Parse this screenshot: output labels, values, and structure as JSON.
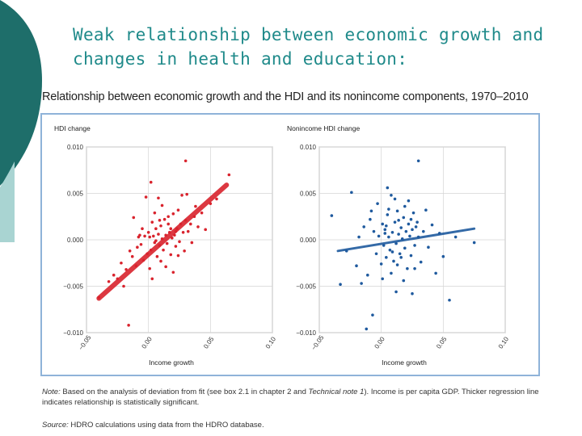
{
  "slide": {
    "title_line1": "Weak relationship between economic growth and",
    "title_line2": "changes in health and education:",
    "colors": {
      "teal": "#1e6e6a",
      "light_teal": "#a9d4d2",
      "title": "#1f8a8a"
    }
  },
  "figure": {
    "title": "Relationship between economic growth and the HDI and its nonincome components, 1970–2010",
    "note_label": "Note:",
    "note_text_1": "Based on the analysis of deviation from fit (see box 2.1 in chapter 2 and",
    "note_italic": "Technical note 1",
    "note_text_2": "). Income is per capita GDP. Thicker regression line",
    "note_text_3": "indicates relationship is statistically significant.",
    "source_label": "Source:",
    "source_text": "HDRO calculations using data from the HDRO database."
  },
  "chart_data": [
    {
      "type": "scatter",
      "title": "HDI change",
      "xlabel": "Income growth",
      "ylabel": "HDI change",
      "xlim": [
        -0.05,
        0.1
      ],
      "ylim": [
        -0.01,
        0.01
      ],
      "x_ticks": [
        "−0.05",
        "0.00",
        "0.05",
        "0.10"
      ],
      "x_tick_values": [
        -0.05,
        0.0,
        0.05,
        0.1
      ],
      "y_ticks": [
        "0.010",
        "0.005",
        "0.000",
        "−0.005",
        "−0.010"
      ],
      "y_tick_values": [
        0.01,
        0.005,
        0.0,
        -0.005,
        -0.01
      ],
      "color": "#d9232d",
      "regression": {
        "x": [
          -0.04,
          0.063
        ],
        "y": [
          -0.0063,
          0.0059
        ],
        "significant": true
      },
      "points": [
        [
          -0.04,
          -0.0062
        ],
        [
          -0.032,
          -0.0045
        ],
        [
          -0.028,
          -0.0038
        ],
        [
          -0.025,
          -0.0042
        ],
        [
          -0.022,
          -0.0025
        ],
        [
          -0.02,
          -0.005
        ],
        [
          -0.018,
          -0.0032
        ],
        [
          -0.016,
          -0.0092
        ],
        [
          -0.015,
          -0.0012
        ],
        [
          -0.013,
          -0.0018
        ],
        [
          -0.012,
          0.0024
        ],
        [
          -0.01,
          -0.0028
        ],
        [
          -0.009,
          -0.0008
        ],
        [
          -0.008,
          0.0003
        ],
        [
          -0.006,
          -0.0005
        ],
        [
          -0.005,
          0.0012
        ],
        [
          -0.004,
          -0.0022
        ],
        [
          -0.003,
          0.0004
        ],
        [
          -0.002,
          0.0046
        ],
        [
          -0.001,
          -0.0015
        ],
        [
          0.0,
          0.0008
        ],
        [
          0.001,
          0.0003
        ],
        [
          0.002,
          -0.0011
        ],
        [
          0.003,
          0.0019
        ],
        [
          0.004,
          0.0004
        ],
        [
          0.005,
          -0.0003
        ],
        [
          0.005,
          0.0029
        ],
        [
          0.006,
          0.0012
        ],
        [
          0.007,
          -0.0018
        ],
        [
          0.008,
          0.0006
        ],
        [
          0.009,
          -0.0006
        ],
        [
          0.01,
          0.0015
        ],
        [
          0.011,
          0.0001
        ],
        [
          0.012,
          -0.0011
        ],
        [
          0.013,
          0.0022
        ],
        [
          0.014,
          0.0005
        ],
        [
          0.015,
          -0.0004
        ],
        [
          0.016,
          0.0017
        ],
        [
          0.017,
          0.0008
        ],
        [
          0.018,
          -0.0016
        ],
        [
          0.019,
          0.0002
        ],
        [
          0.02,
          0.0028
        ],
        [
          0.021,
          0.0005
        ],
        [
          0.022,
          -0.0007
        ],
        [
          0.023,
          0.0012
        ],
        [
          0.024,
          0.0032
        ],
        [
          0.025,
          -0.0002
        ],
        [
          0.026,
          0.0017
        ],
        [
          0.027,
          0.0048
        ],
        [
          0.028,
          0.0008
        ],
        [
          0.029,
          -0.0012
        ],
        [
          0.03,
          0.0021
        ],
        [
          0.031,
          0.0049
        ],
        [
          0.032,
          0.0009
        ],
        [
          0.034,
          0.0017
        ],
        [
          0.035,
          -0.0003
        ],
        [
          0.037,
          0.0025
        ],
        [
          0.038,
          0.0036
        ],
        [
          0.04,
          0.0014
        ],
        [
          0.043,
          0.0029
        ],
        [
          0.046,
          0.0011
        ],
        [
          0.05,
          0.0039
        ],
        [
          0.055,
          0.0044
        ],
        [
          0.065,
          0.007
        ],
        [
          0.03,
          0.0085
        ],
        [
          0.008,
          0.0045
        ],
        [
          0.002,
          0.0062
        ],
        [
          0.014,
          -0.0029
        ],
        [
          0.02,
          -0.0035
        ],
        [
          0.003,
          -0.0042
        ],
        [
          0.01,
          -0.0023
        ],
        [
          0.024,
          -0.0017
        ],
        [
          -0.007,
          0.0005
        ],
        [
          0.016,
          0.0025
        ],
        [
          0.011,
          0.0037
        ],
        [
          0.006,
          -0.0001
        ],
        [
          0.018,
          0.0012
        ],
        [
          0.009,
          0.0021
        ],
        [
          0.001,
          -0.0031
        ],
        [
          0.022,
          0.0009
        ]
      ]
    },
    {
      "type": "scatter",
      "title": "Nonincome HDI change",
      "xlabel": "Income growth",
      "ylabel": "Nonincome HDI change",
      "xlim": [
        -0.05,
        0.1
      ],
      "ylim": [
        -0.01,
        0.01
      ],
      "x_ticks": [
        "−0.05",
        "0.00",
        "0.05",
        "0.10"
      ],
      "x_tick_values": [
        -0.05,
        0.0,
        0.05,
        0.1
      ],
      "y_ticks": [
        "0.010",
        "0.005",
        "0.000",
        "−0.005",
        "−0.010"
      ],
      "y_tick_values": [
        0.01,
        0.005,
        0.0,
        -0.005,
        -0.01
      ],
      "color": "#1f5a9e",
      "regression": {
        "x": [
          -0.035,
          0.075
        ],
        "y": [
          -0.0012,
          0.0012
        ],
        "significant": false
      },
      "points": [
        [
          -0.04,
          0.0026
        ],
        [
          -0.033,
          -0.0048
        ],
        [
          -0.028,
          -0.0012
        ],
        [
          -0.024,
          0.0051
        ],
        [
          -0.02,
          -0.0028
        ],
        [
          -0.018,
          0.0003
        ],
        [
          -0.016,
          -0.0047
        ],
        [
          -0.014,
          0.0014
        ],
        [
          -0.012,
          -0.0096
        ],
        [
          -0.011,
          -0.0038
        ],
        [
          -0.009,
          0.0022
        ],
        [
          -0.007,
          -0.0081
        ],
        [
          -0.006,
          0.0009
        ],
        [
          -0.004,
          -0.0015
        ],
        [
          -0.003,
          0.0039
        ],
        [
          -0.002,
          0.0004
        ],
        [
          0.0,
          -0.0026
        ],
        [
          0.001,
          0.0017
        ],
        [
          0.002,
          -0.0006
        ],
        [
          0.003,
          0.0011
        ],
        [
          0.004,
          -0.0019
        ],
        [
          0.005,
          0.0027
        ],
        [
          0.006,
          0.0003
        ],
        [
          0.007,
          -0.0011
        ],
        [
          0.008,
          0.0048
        ],
        [
          0.009,
          0.0008
        ],
        [
          0.01,
          -0.0023
        ],
        [
          0.011,
          0.0019
        ],
        [
          0.012,
          -0.0004
        ],
        [
          0.013,
          0.0031
        ],
        [
          0.014,
          0.0006
        ],
        [
          0.015,
          -0.0015
        ],
        [
          0.016,
          0.0013
        ],
        [
          0.017,
          0.0001
        ],
        [
          0.018,
          0.0024
        ],
        [
          0.019,
          -0.0009
        ],
        [
          0.02,
          0.0009
        ],
        [
          0.021,
          -0.0031
        ],
        [
          0.022,
          0.0017
        ],
        [
          0.023,
          0.0004
        ],
        [
          0.024,
          -0.0017
        ],
        [
          0.025,
          0.0011
        ],
        [
          0.026,
          0.0029
        ],
        [
          0.027,
          -0.0006
        ],
        [
          0.028,
          0.0014
        ],
        [
          0.03,
          0.0003
        ],
        [
          0.032,
          -0.0024
        ],
        [
          0.034,
          0.0009
        ],
        [
          0.036,
          0.0032
        ],
        [
          0.038,
          -0.0008
        ],
        [
          0.041,
          0.0016
        ],
        [
          0.044,
          -0.0036
        ],
        [
          0.047,
          0.0007
        ],
        [
          0.05,
          -0.0018
        ],
        [
          0.055,
          -0.0065
        ],
        [
          0.06,
          0.0003
        ],
        [
          0.075,
          -0.0003
        ],
        [
          0.03,
          0.0085
        ],
        [
          0.025,
          -0.0058
        ],
        [
          0.012,
          -0.0056
        ],
        [
          0.005,
          0.0056
        ],
        [
          -0.008,
          0.0031
        ],
        [
          0.018,
          -0.0044
        ],
        [
          0.022,
          0.0042
        ],
        [
          0.008,
          -0.0036
        ],
        [
          0.014,
          0.0021
        ],
        [
          0.003,
          0.0007
        ],
        [
          0.019,
          0.0036
        ],
        [
          0.027,
          -0.0031
        ],
        [
          0.001,
          -0.0042
        ],
        [
          0.016,
          -0.0019
        ],
        [
          0.011,
          0.0044
        ],
        [
          0.024,
          0.0022
        ],
        [
          0.004,
          0.0015
        ],
        [
          0.009,
          -0.0013
        ],
        [
          0.013,
          -0.0027
        ],
        [
          0.006,
          0.0033
        ],
        [
          0.029,
          0.0019
        ]
      ]
    }
  ]
}
